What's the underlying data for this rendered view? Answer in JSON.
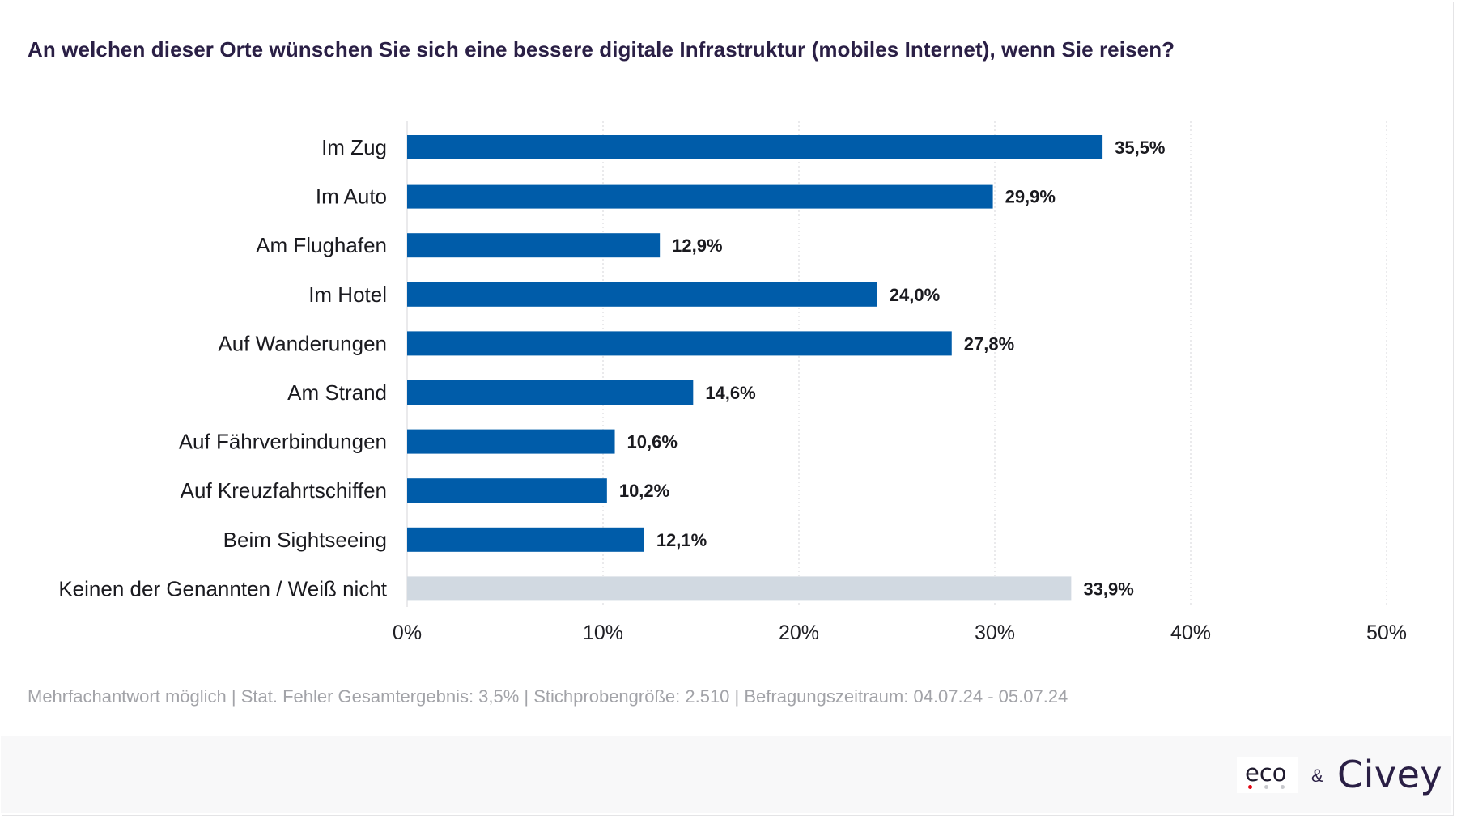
{
  "chart_data": {
    "type": "bar",
    "orientation": "horizontal",
    "title": "An welchen dieser Orte wünschen Sie sich eine bessere digitale Infrastruktur (mobiles Internet), wenn Sie reisen?",
    "categories": [
      "Im Zug",
      "Im Auto",
      "Am Flughafen",
      "Im Hotel",
      "Auf Wanderungen",
      "Am Strand",
      "Auf Fährverbindungen",
      "Auf Kreuzfahrtschiffen",
      "Beim Sightseeing",
      "Keinen der Genannten / Weiß nicht"
    ],
    "values": [
      35.5,
      29.9,
      12.9,
      24.0,
      27.8,
      14.6,
      10.6,
      10.2,
      12.1,
      33.9
    ],
    "value_labels": [
      "35,5%",
      "29,9%",
      "12,9%",
      "24,0%",
      "27,8%",
      "14,6%",
      "10,6%",
      "10,2%",
      "12,1%",
      "33,9%"
    ],
    "xlim": [
      0,
      50
    ],
    "xticks": [
      0,
      10,
      20,
      30,
      40,
      50
    ],
    "xtick_labels": [
      "0%",
      "10%",
      "20%",
      "30%",
      "40%",
      "50%"
    ],
    "grid": "vertical dotted",
    "colors": {
      "bar": "#005ca9",
      "bar_neutral": "#d1d9e1",
      "title": "#2a1f45"
    }
  },
  "footnote": "Mehrfachantwort möglich | Stat. Fehler Gesamtergebnis: 3,5% | Stichprobengröße: 2.510 | Befragungszeitraum: 04.07.24 - 05.07.24",
  "branding": {
    "eco": "eco",
    "ampersand": "&",
    "civey": "Civey"
  }
}
